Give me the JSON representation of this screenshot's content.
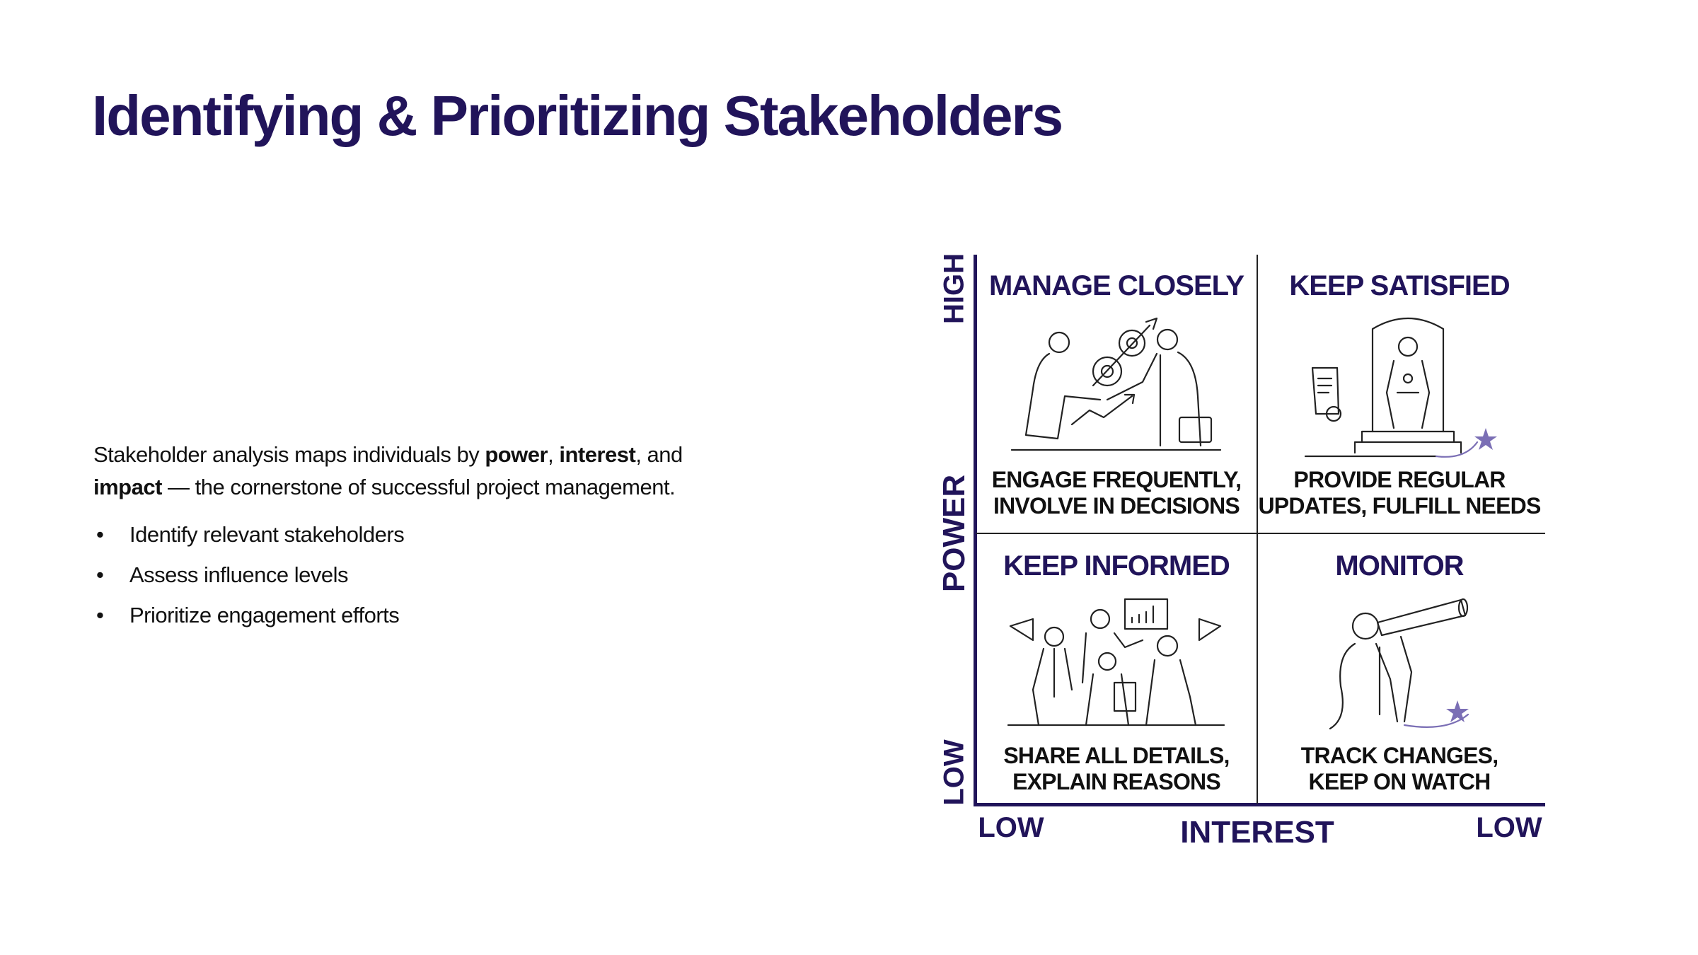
{
  "title": "Identifying & Prioritizing Stakeholders",
  "intro": {
    "part1": "Stakeholder analysis maps individuals by ",
    "bold1": "power",
    "part2": ", ",
    "bold2": "interest",
    "part3": ", and ",
    "bold3": "impact",
    "part4": " — the cornerstone of successful project management."
  },
  "bullets": [
    "Identify relevant stakeholders",
    "Assess influence levels",
    "Prioritize engagement efforts"
  ],
  "matrix": {
    "y_axis": {
      "label": "POWER",
      "high": "HIGH",
      "low": "LOW"
    },
    "x_axis": {
      "label": "INTEREST",
      "left": "LOW",
      "right": "LOW"
    },
    "quadrants": [
      {
        "title": "MANAGE CLOSELY",
        "line1": "ENGAGE FREQUENTLY,",
        "line2": "INVOLVE IN DECISIONS",
        "icon": "handshake-gears-illustration"
      },
      {
        "title": "KEEP SATISFIED",
        "line1": "PROVIDE REGULAR",
        "line2": "UPDATES, FULFILL NEEDS",
        "icon": "throne-certificate-illustration"
      },
      {
        "title": "KEEP INFORMED",
        "line1": "SHARE ALL DETAILS,",
        "line2": "EXPLAIN REASONS",
        "icon": "megaphone-team-illustration"
      },
      {
        "title": "MONITOR",
        "line1": "TRACK CHANGES,",
        "line2": "KEEP ON WATCH",
        "icon": "telescope-illustration"
      }
    ]
  },
  "colors": {
    "primary": "#21145a",
    "accent_star": "#7b6fb5",
    "text": "#111111"
  }
}
